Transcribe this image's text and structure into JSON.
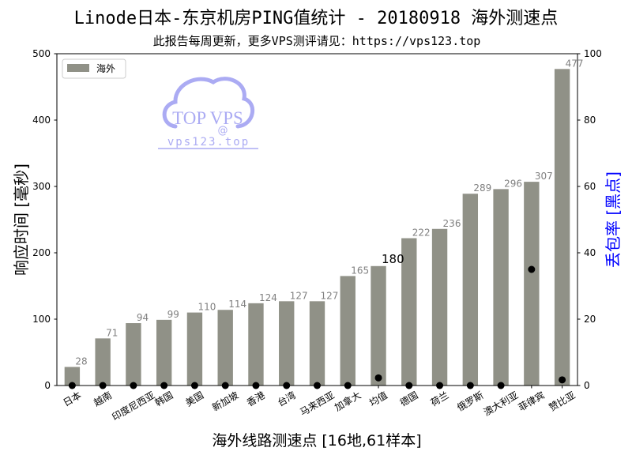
{
  "watermark": {
    "brand": "TOP VPS",
    "at": "@",
    "url": "vps123.top",
    "color": "#a2a2f2"
  },
  "chart_data": {
    "type": "bar",
    "title": "Linode日本-东京机房PING值统计 - 20180918 海外测速点",
    "subtitle": "此报告每周更新，更多VPS测评请见：https://vps123.top",
    "xlabel": "海外线路测速点 [16地,61样本]",
    "ylabel": "响应时间 [毫秒]",
    "y2label": "丢包率 [黑点]",
    "categories": [
      "日本",
      "越南",
      "印度尼西亚",
      "韩国",
      "美国",
      "新加坡",
      "香港",
      "台湾",
      "马来西亚",
      "加拿大",
      "均值",
      "德国",
      "荷兰",
      "俄罗斯",
      "澳大利亚",
      "菲律宾",
      "赞比亚"
    ],
    "series": [
      {
        "name": "海外",
        "type": "bar",
        "axis": "left",
        "color": "#909187",
        "values": [
          28,
          71,
          94,
          99,
          110,
          114,
          124,
          127,
          127,
          165,
          180,
          222,
          236,
          289,
          296,
          307,
          477
        ]
      },
      {
        "type": "scatter",
        "axis": "right",
        "color": "#000000",
        "values": [
          0,
          0,
          0,
          0,
          0,
          0,
          0,
          0,
          0,
          0,
          2.3,
          0,
          0,
          0,
          0,
          35,
          1.7
        ]
      }
    ],
    "ylim": [
      0,
      500
    ],
    "yticks": [
      0,
      100,
      200,
      300,
      400,
      500
    ],
    "y2lim": [
      0,
      100
    ],
    "y2ticks": [
      0,
      20,
      40,
      60,
      80,
      100
    ],
    "data_labels": true,
    "label_color": "#808080",
    "highlight_index": 10,
    "highlight_label_color": "#000000",
    "y2label_color": "#0000ff",
    "legend_position": "upper-left",
    "grid": false
  }
}
